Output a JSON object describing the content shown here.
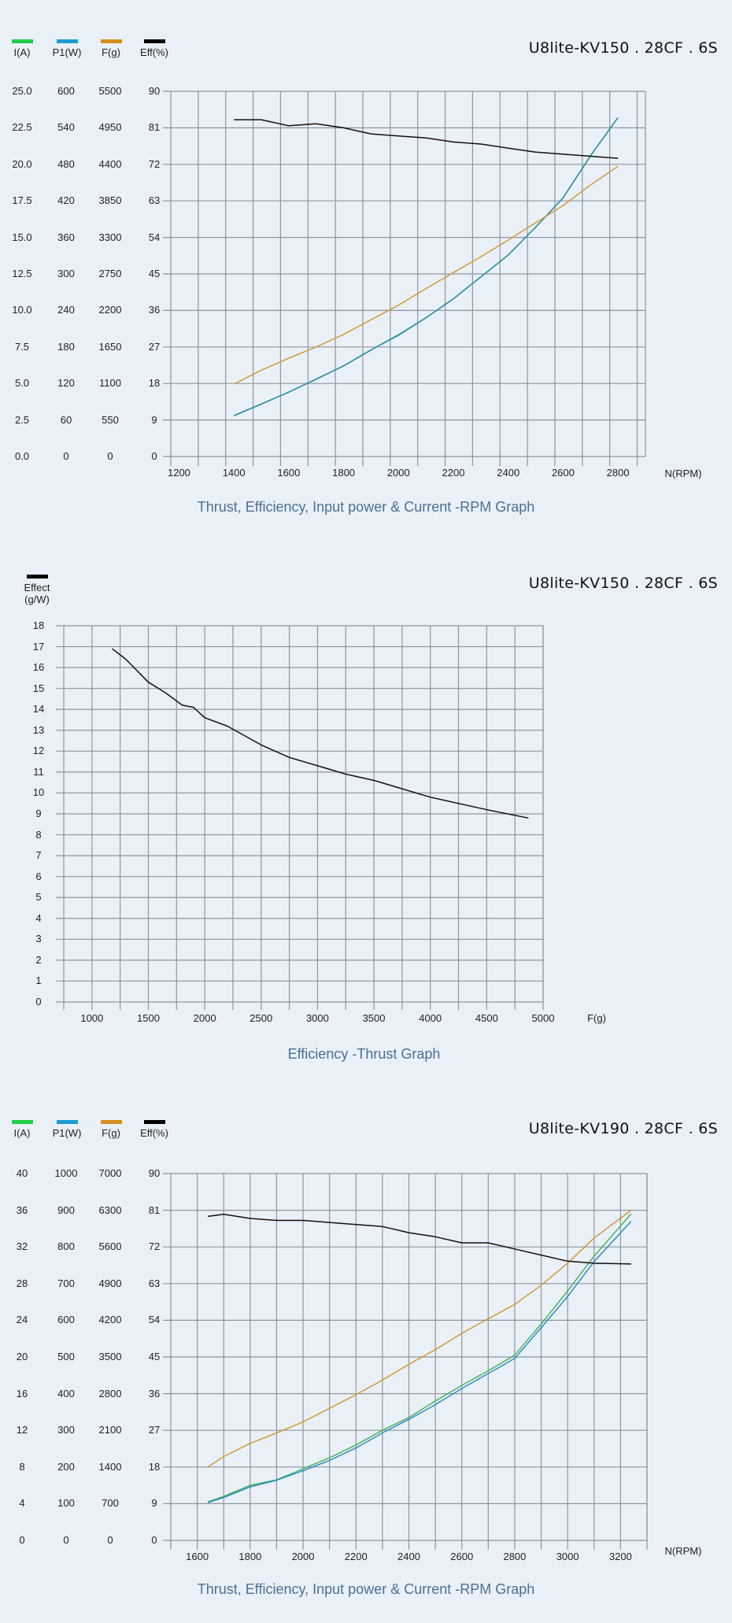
{
  "chart1": {
    "model_title": "U8lite-KV150 . 28CF . 6S",
    "legend": [
      {
        "label": "I(A)",
        "color": "#22cc44"
      },
      {
        "label": "P1(W)",
        "color": "#1e9bd0"
      },
      {
        "label": "F(g)",
        "color": "#d4901e"
      },
      {
        "label": "Eff(%)",
        "color": "#000000"
      }
    ],
    "y_axes": {
      "current": [
        "25.0",
        "22.5",
        "20.0",
        "17.5",
        "15.0",
        "12.5",
        "10.0",
        "7.5",
        "5.0",
        "2.5",
        "0.0"
      ],
      "power": [
        "600",
        "540",
        "480",
        "420",
        "360",
        "300",
        "240",
        "180",
        "120",
        "60",
        "0"
      ],
      "thrust": [
        "5500",
        "4950",
        "4400",
        "3850",
        "3300",
        "2750",
        "2200",
        "1650",
        "1100",
        "550",
        "0"
      ],
      "eff": [
        "90",
        "81",
        "72",
        "63",
        "54",
        "45",
        "36",
        "27",
        "18",
        "9",
        "0"
      ]
    },
    "x_ticks": [
      "1200",
      "1400",
      "1600",
      "1800",
      "2000",
      "2200",
      "2400",
      "2600",
      "2800"
    ],
    "x_label": "N(RPM)",
    "caption": "Thrust, Efficiency, Input power & Current -RPM Graph"
  },
  "chart2": {
    "model_title": "U8lite-KV150 . 28CF . 6S",
    "legend": {
      "label_line1": "Effect",
      "label_line2": "(g/W)",
      "color": "#000000"
    },
    "y_ticks": [
      "18",
      "17",
      "16",
      "15",
      "14",
      "13",
      "12",
      "11",
      "10",
      "9",
      "8",
      "7",
      "6",
      "5",
      "4",
      "3",
      "2",
      "1",
      "0"
    ],
    "x_ticks": [
      "1000",
      "1500",
      "2000",
      "2500",
      "3000",
      "3500",
      "4000",
      "4500",
      "5000"
    ],
    "x_label": "F(g)",
    "caption": "Efficiency -Thrust Graph"
  },
  "chart3": {
    "model_title": "U8lite-KV190 . 28CF . 6S",
    "legend": [
      {
        "label": "I(A)",
        "color": "#22cc44"
      },
      {
        "label": "P1(W)",
        "color": "#1e9bd0"
      },
      {
        "label": "F(g)",
        "color": "#d4901e"
      },
      {
        "label": "Eff(%)",
        "color": "#000000"
      }
    ],
    "y_axes": {
      "current": [
        "40",
        "36",
        "32",
        "28",
        "24",
        "20",
        "16",
        "12",
        "8",
        "4",
        "0"
      ],
      "power": [
        "1000",
        "900",
        "800",
        "700",
        "600",
        "500",
        "400",
        "300",
        "200",
        "100",
        "0"
      ],
      "thrust": [
        "7000",
        "6300",
        "5600",
        "4900",
        "4200",
        "3500",
        "2800",
        "2100",
        "1400",
        "700",
        "0"
      ],
      "eff": [
        "90",
        "81",
        "72",
        "63",
        "54",
        "45",
        "36",
        "27",
        "18",
        "9",
        "0"
      ]
    },
    "x_ticks": [
      "1600",
      "1800",
      "2000",
      "2200",
      "2400",
      "2600",
      "2800",
      "3000",
      "3200"
    ],
    "x_label": "N(RPM)",
    "caption": "Thrust, Efficiency, Input power & Current -RPM Graph"
  },
  "chart_data": [
    {
      "type": "line",
      "title": "U8lite-KV150 . 28CF . 6S",
      "subtitle": "Thrust, Efficiency, Input power & Current -RPM Graph",
      "xlabel": "N(RPM)",
      "xlim": [
        1200,
        2900
      ],
      "grid": true,
      "legend_position": "top-left",
      "x": [
        1400,
        1500,
        1600,
        1700,
        1800,
        1900,
        2000,
        2100,
        2200,
        2300,
        2400,
        2500,
        2600,
        2700,
        2800
      ],
      "series": [
        {
          "name": "I(A)",
          "axis_range": [
            0,
            25
          ],
          "values": [
            2.8,
            3.6,
            4.4,
            5.3,
            6.2,
            7.3,
            8.3,
            9.5,
            10.8,
            12.3,
            13.8,
            15.7,
            17.7,
            20.6,
            23.2
          ]
        },
        {
          "name": "P1(W)",
          "axis_range": [
            0,
            600
          ],
          "values": [
            67,
            86,
            106,
            127,
            149,
            175,
            200,
            228,
            259,
            295,
            331,
            377,
            425,
            494,
            557
          ]
        },
        {
          "name": "F(g)",
          "axis_range": [
            0,
            5500
          ],
          "values": [
            1090,
            1300,
            1480,
            1650,
            1840,
            2060,
            2280,
            2530,
            2770,
            3010,
            3260,
            3520,
            3780,
            4090,
            4370
          ]
        },
        {
          "name": "Eff(%)",
          "axis_range": [
            0,
            90
          ],
          "values": [
            83,
            83,
            81.5,
            82,
            81,
            79.5,
            79,
            78.5,
            77.5,
            77,
            76,
            75,
            74.5,
            74,
            73.5
          ]
        }
      ]
    },
    {
      "type": "line",
      "title": "U8lite-KV150 . 28CF . 6S",
      "subtitle": "Efficiency -Thrust Graph",
      "xlabel": "F(g)",
      "ylabel": "Effect (g/W)",
      "xlim": [
        750,
        5000
      ],
      "ylim": [
        0,
        18
      ],
      "grid": true,
      "x": [
        1180,
        1300,
        1500,
        1650,
        1800,
        1900,
        2000,
        2200,
        2500,
        2750,
        3000,
        3250,
        3500,
        4000,
        4500,
        4870
      ],
      "series": [
        {
          "name": "Effect(g/W)",
          "values": [
            16.9,
            16.4,
            15.3,
            14.8,
            14.2,
            14.1,
            13.6,
            13.2,
            12.3,
            11.7,
            11.3,
            10.9,
            10.6,
            9.8,
            9.2,
            8.8
          ]
        }
      ]
    },
    {
      "type": "line",
      "title": "U8lite-KV190 . 28CF . 6S",
      "subtitle": "Thrust, Efficiency, Input power & Current -RPM Graph",
      "xlabel": "N(RPM)",
      "xlim": [
        1500,
        3300
      ],
      "grid": true,
      "legend_position": "top-left",
      "x": [
        1640,
        1700,
        1800,
        1900,
        2000,
        2100,
        2200,
        2300,
        2400,
        2500,
        2600,
        2700,
        2800,
        2900,
        3000,
        3100,
        3240
      ],
      "series": [
        {
          "name": "I(A)",
          "axis_range": [
            0,
            40
          ],
          "values": [
            4.2,
            4.8,
            6,
            6.6,
            7.8,
            9,
            10.4,
            12,
            13.4,
            15.2,
            16.9,
            18.5,
            20.2,
            23.6,
            27.2,
            31,
            35.6
          ]
        },
        {
          "name": "P1(W)",
          "axis_range": [
            0,
            1000
          ],
          "values": [
            103,
            117,
            146,
            164,
            190,
            218,
            252,
            293,
            330,
            370,
            414,
            455,
            496,
            580,
            665,
            760,
            870
          ]
        },
        {
          "name": "F(g)",
          "axis_range": [
            0,
            7000
          ],
          "values": [
            1400,
            1600,
            1850,
            2050,
            2260,
            2520,
            2780,
            3060,
            3360,
            3640,
            3950,
            4230,
            4500,
            4870,
            5290,
            5770,
            6300
          ]
        },
        {
          "name": "Eff(%)",
          "axis_range": [
            0,
            90
          ],
          "values": [
            79.5,
            80,
            79,
            78.5,
            78.5,
            78,
            77.5,
            77,
            75.5,
            74.5,
            73,
            73,
            71.5,
            70,
            68.5,
            68,
            67.8
          ]
        }
      ]
    }
  ]
}
